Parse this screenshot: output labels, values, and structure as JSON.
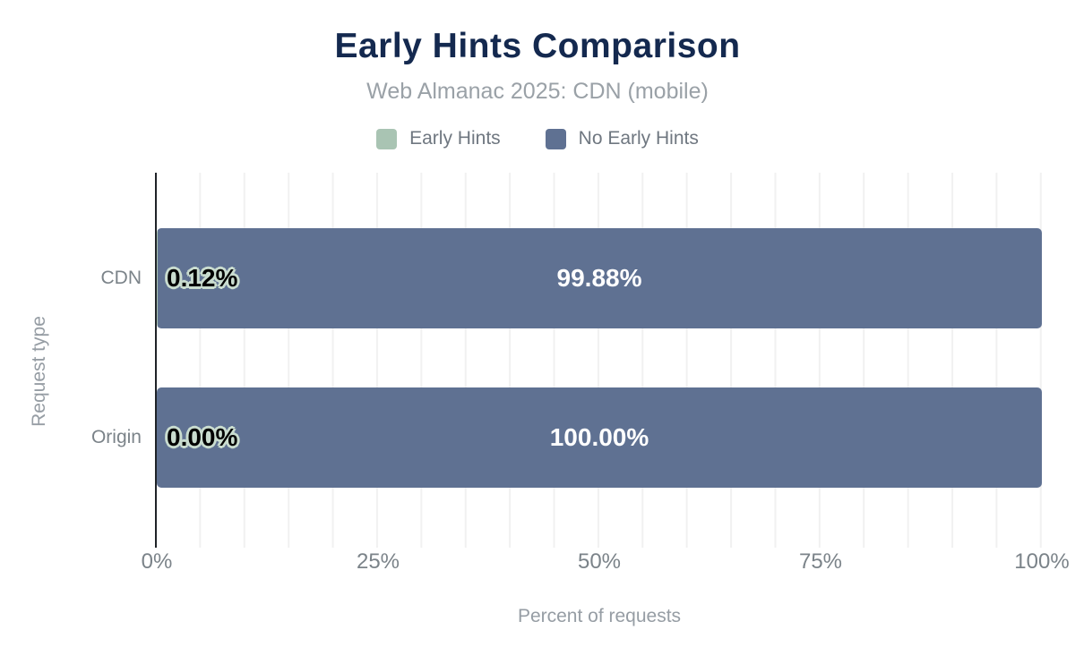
{
  "chart_data": {
    "type": "bar",
    "orientation": "horizontal",
    "stacked": true,
    "title": "Early Hints Comparison",
    "subtitle": "Web Almanac 2025: CDN (mobile)",
    "categories": [
      "CDN",
      "Origin"
    ],
    "series": [
      {
        "name": "Early Hints",
        "color": "#a9c4b3",
        "values": [
          0.12,
          0.0
        ],
        "labels": [
          "0.12%",
          "0.00%"
        ],
        "label_align": "start",
        "label_color": "#000000",
        "label_halo": "#c9dccf"
      },
      {
        "name": "No Early Hints",
        "color": "#5f7192",
        "values": [
          99.88,
          100.0
        ],
        "labels": [
          "99.88%",
          "100.00%"
        ],
        "label_align": "center",
        "label_color": "#ffffff",
        "label_halo": ""
      }
    ],
    "xlabel": "Percent of requests",
    "ylabel": "Request type",
    "xlim": [
      0,
      100
    ],
    "x_ticks": [
      "0%",
      "25%",
      "50%",
      "75%",
      "100%"
    ],
    "grid": "vertical minor gridlines every 5%",
    "legend_position": "top",
    "colors": {
      "title": "#14294f",
      "subtitle": "#9aa1a7",
      "axis_line": "#1f2328",
      "gridline": "#f1f1f1",
      "tick_text": "#7b8389",
      "axis_title_text": "#969da4",
      "background": "#ffffff"
    }
  }
}
